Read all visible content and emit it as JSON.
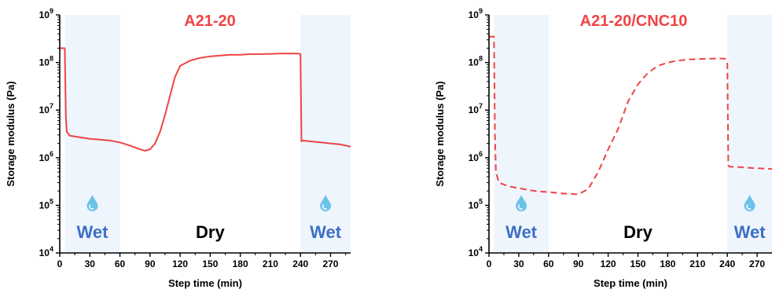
{
  "colors": {
    "series": "#ef4444",
    "wet_band": "#eef5fd",
    "wet_text": "#3d6fc4",
    "drop": "#6cc3ea"
  },
  "chart_data": [
    {
      "type": "line",
      "title": "A21-20",
      "xlabel": "Step time (min)",
      "ylabel": "Storage modulus (Pa)",
      "xlim": [
        0,
        290
      ],
      "ylim": [
        10000,
        1000000000
      ],
      "yscale": "log",
      "xticks": [
        "0",
        "30",
        "60",
        "90",
        "120",
        "150",
        "180",
        "210",
        "240",
        "270"
      ],
      "yticks": [
        {
          "base": "10",
          "exp": "4"
        },
        {
          "base": "10",
          "exp": "5"
        },
        {
          "base": "10",
          "exp": "6"
        },
        {
          "base": "10",
          "exp": "7"
        },
        {
          "base": "10",
          "exp": "8"
        },
        {
          "base": "10",
          "exp": "9"
        }
      ],
      "regions": [
        {
          "label": "Wet",
          "start": 5,
          "end": 60
        },
        {
          "label": "Dry",
          "start": 60,
          "end": 240
        },
        {
          "label": "Wet",
          "start": 240,
          "end": 290
        }
      ],
      "line_style": "solid",
      "series": [
        {
          "x": [
            0,
            5,
            6,
            7,
            10,
            20,
            30,
            40,
            50,
            60,
            70,
            80,
            85,
            90,
            95,
            100,
            105,
            110,
            115,
            120,
            130,
            140,
            150,
            160,
            170,
            180,
            190,
            200,
            210,
            220,
            230,
            238,
            240,
            241,
            242,
            250,
            260,
            270,
            280,
            290
          ],
          "y": [
            200000000,
            200000000,
            8000000,
            3500000,
            2900000,
            2700000,
            2500000,
            2400000,
            2300000,
            2100000,
            1800000,
            1500000,
            1400000,
            1500000,
            2000000,
            3500000,
            8000000,
            20000000,
            50000000,
            85000000,
            110000000,
            125000000,
            135000000,
            140000000,
            145000000,
            145000000,
            150000000,
            150000000,
            152000000,
            155000000,
            155000000,
            155000000,
            150000000,
            2200000,
            2300000,
            2200000,
            2100000,
            2000000,
            1900000,
            1700000
          ]
        }
      ]
    },
    {
      "type": "line",
      "title": "A21-20/CNC10",
      "xlabel": "Step time (min)",
      "ylabel": "Storage modulus (Pa)",
      "xlim": [
        0,
        285
      ],
      "ylim": [
        10000,
        1000000000
      ],
      "yscale": "log",
      "xticks": [
        "0",
        "30",
        "60",
        "90",
        "120",
        "150",
        "180",
        "210",
        "240",
        "270"
      ],
      "yticks": [
        {
          "base": "10",
          "exp": "4"
        },
        {
          "base": "10",
          "exp": "5"
        },
        {
          "base": "10",
          "exp": "6"
        },
        {
          "base": "10",
          "exp": "7"
        },
        {
          "base": "10",
          "exp": "8"
        },
        {
          "base": "10",
          "exp": "9"
        }
      ],
      "regions": [
        {
          "label": "Wet",
          "start": 5,
          "end": 60
        },
        {
          "label": "Dry",
          "start": 60,
          "end": 240
        },
        {
          "label": "Wet",
          "start": 240,
          "end": 285
        }
      ],
      "line_style": "dashed",
      "series": [
        {
          "x": [
            0,
            5,
            6,
            7,
            10,
            20,
            30,
            40,
            50,
            60,
            70,
            80,
            90,
            100,
            110,
            120,
            130,
            140,
            150,
            160,
            170,
            180,
            190,
            200,
            210,
            220,
            230,
            238,
            240,
            241,
            242,
            250,
            260,
            270,
            285
          ],
          "y": [
            350000000,
            350000000,
            3000000,
            500000,
            300000,
            250000,
            230000,
            210000,
            195000,
            190000,
            180000,
            175000,
            170000,
            220000,
            500000,
            1500000,
            4000000,
            15000000,
            35000000,
            60000000,
            85000000,
            100000000,
            110000000,
            115000000,
            118000000,
            120000000,
            122000000,
            120000000,
            100000000,
            700000,
            650000,
            640000,
            620000,
            600000,
            580000
          ]
        }
      ]
    }
  ]
}
